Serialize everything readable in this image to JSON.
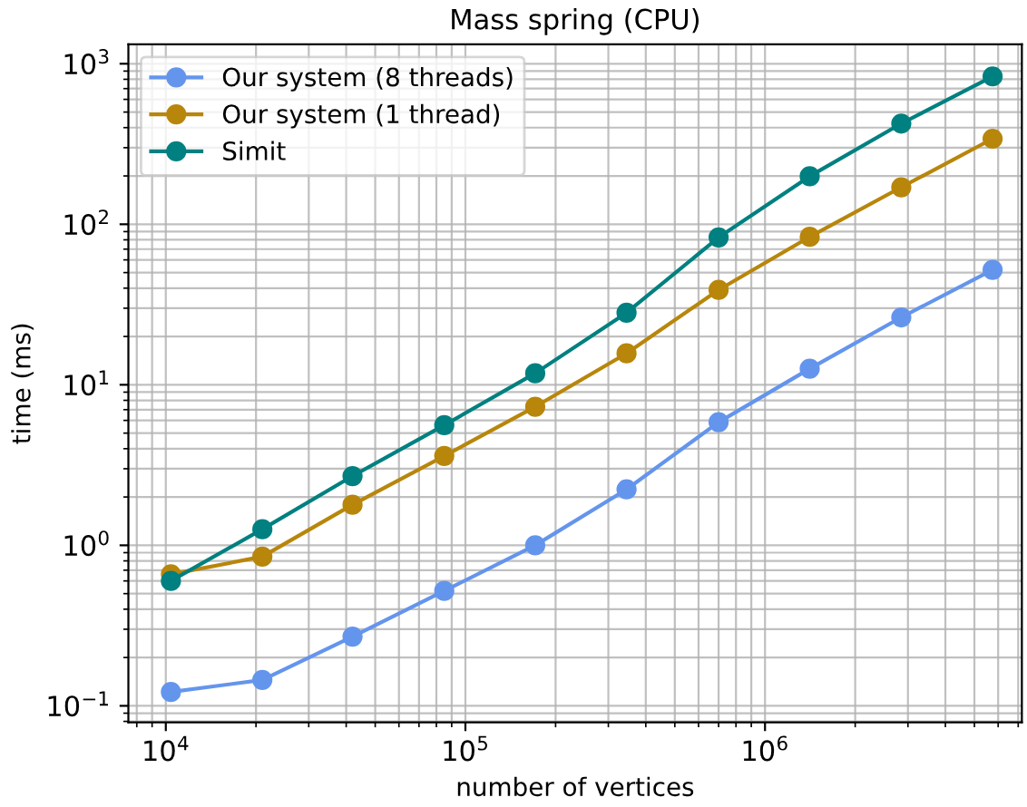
{
  "chart_data": {
    "type": "line",
    "title": "Mass spring (CPU)",
    "xlabel": "number of vertices",
    "ylabel": "time (ms)",
    "x": [
      10400,
      21000,
      42000,
      85000,
      171000,
      345000,
      700000,
      1410000,
      2850000,
      5750000
    ],
    "series": [
      {
        "name": "Our system (8 threads)",
        "color": "#6495ed",
        "values": [
          0.122,
          0.145,
          0.27,
          0.52,
          1.0,
          2.23,
          5.85,
          12.6,
          26.3,
          52
        ]
      },
      {
        "name": "Our system (1 thread)",
        "color": "#b8860b",
        "values": [
          0.66,
          0.85,
          1.79,
          3.6,
          7.3,
          15.7,
          39,
          83.5,
          170,
          341
        ]
      },
      {
        "name": "Simit",
        "color": "#008080",
        "values": [
          0.6,
          1.26,
          2.7,
          5.6,
          11.8,
          28.1,
          82.8,
          199,
          424,
          834
        ]
      }
    ],
    "log": "xy",
    "xlim": [
      7500,
      7200000
    ],
    "ylim": [
      0.079,
      1320
    ],
    "xticks": [
      {
        "value": 10000,
        "label": "10$^{4}$"
      },
      {
        "value": 100000,
        "label": "10$^{5}$"
      },
      {
        "value": 1000000,
        "label": "10$^{6}$"
      }
    ],
    "yticks": [
      {
        "value": 0.1,
        "label": "10$^{−1}$"
      },
      {
        "value": 1,
        "label": "10$^{0}$"
      },
      {
        "value": 10,
        "label": "10$^{1}$"
      },
      {
        "value": 100,
        "label": "10$^{2}$"
      },
      {
        "value": 1000,
        "label": "10$^{3}$"
      }
    ],
    "grid": true,
    "legend": "top left",
    "marker": "circle",
    "line_style": "solid"
  }
}
